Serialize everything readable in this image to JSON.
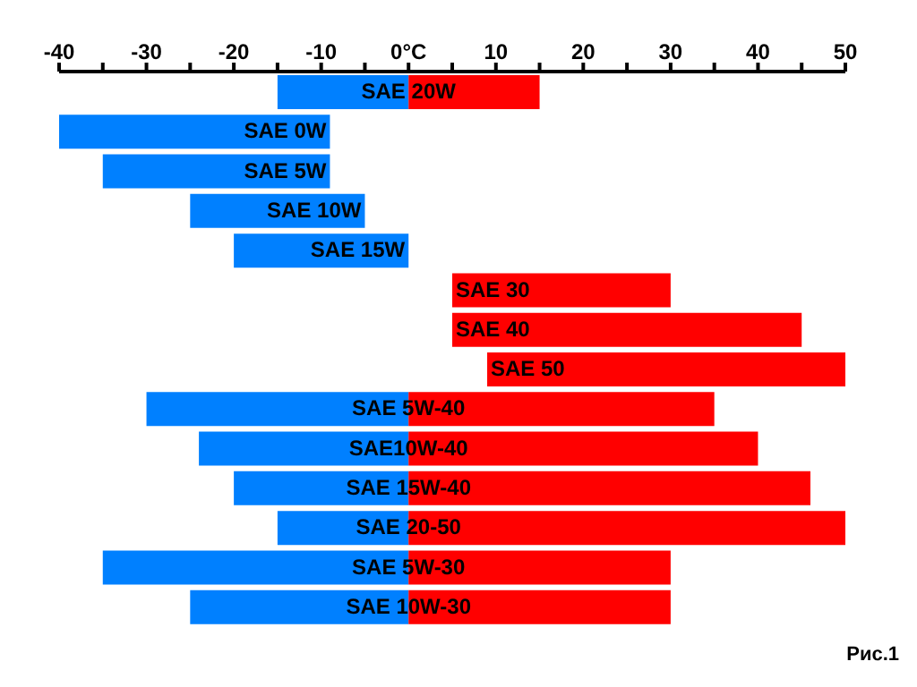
{
  "chart_data": {
    "type": "bar",
    "orientation": "horizontal",
    "categories": [
      "SAE 20W",
      "SAE 0W",
      "SAE 5W",
      "SAE 10W",
      "SAE 15W",
      "SAE 30",
      "SAE 40",
      "SAE 50",
      "SAE 5W-40",
      "SAE10W-40",
      "SAE 15W-40",
      "SAE 20-50",
      "SAE 5W-30",
      "SAE 10W-30"
    ],
    "series": [
      {
        "color": "#0080ff",
        "base": [
          -15,
          -40,
          -35,
          -25,
          -20,
          null,
          null,
          null,
          -30,
          -24,
          -20,
          -15,
          -35,
          -25
        ],
        "values": [
          15,
          31,
          26,
          20,
          20,
          null,
          null,
          null,
          30,
          24,
          20,
          15,
          35,
          25
        ]
      },
      {
        "color": "#ff0000",
        "base": [
          0,
          null,
          null,
          null,
          null,
          5,
          5,
          9,
          0,
          0,
          0,
          0,
          0,
          0
        ],
        "values": [
          15,
          null,
          null,
          null,
          null,
          25,
          40,
          41,
          35,
          40,
          46,
          50,
          30,
          30
        ]
      }
    ],
    "xlim": [
      -40,
      50
    ],
    "xticks": [
      -40,
      {
        "value": -35,
        "label": null
      },
      -30,
      {
        "value": -25,
        "label": null
      },
      -20,
      {
        "value": -15,
        "label": null
      },
      -10,
      {
        "value": -5,
        "label": null
      },
      {
        "value": 0,
        "label": "0°C"
      },
      {
        "value": 5,
        "label": null
      },
      10,
      {
        "value": 15,
        "label": null
      },
      20,
      {
        "value": 25,
        "label": null
      },
      30,
      {
        "value": 35,
        "label": null
      },
      40,
      {
        "value": 45,
        "label": null
      },
      50
    ],
    "annotations": [
      "Рис.1"
    ]
  }
}
